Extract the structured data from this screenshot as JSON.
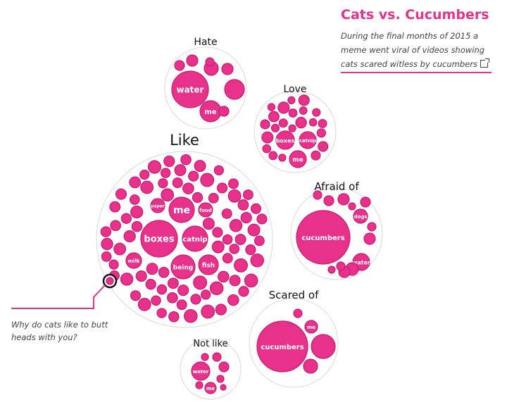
{
  "header": {
    "title": "Cats vs. Cucumbers",
    "description": "During the final months of 2015 a meme went viral of videos showing cats scared witless by cucumbers",
    "link_icon": "external-link-icon",
    "accent_color": "#e8318a"
  },
  "tooltip": {
    "text": "Why do cats like to butt heads with you?"
  },
  "chart_data": {
    "type": "packed-bubble",
    "groups": [
      {
        "name": "Hate",
        "labeled": [
          "water",
          "me"
        ],
        "unlabeled_count": 7
      },
      {
        "name": "Love",
        "labeled": [
          "boxes",
          "catnip",
          "me"
        ],
        "unlabeled_count": 34
      },
      {
        "name": "Like",
        "labeled": [
          "boxes",
          "me",
          "catnip",
          "being",
          "fish",
          "milk",
          "paper",
          "food"
        ],
        "unlabeled_count": 180
      },
      {
        "name": "Afraid of",
        "labeled": [
          "cucumbers",
          "dogs",
          "water"
        ],
        "unlabeled_count": 11
      },
      {
        "name": "Scared of",
        "labeled": [
          "cucumbers",
          "me"
        ],
        "unlabeled_count": 3
      },
      {
        "name": "Not like",
        "labeled": [
          "water",
          "me"
        ],
        "unlabeled_count": 6
      }
    ],
    "color": "#e8318a"
  }
}
